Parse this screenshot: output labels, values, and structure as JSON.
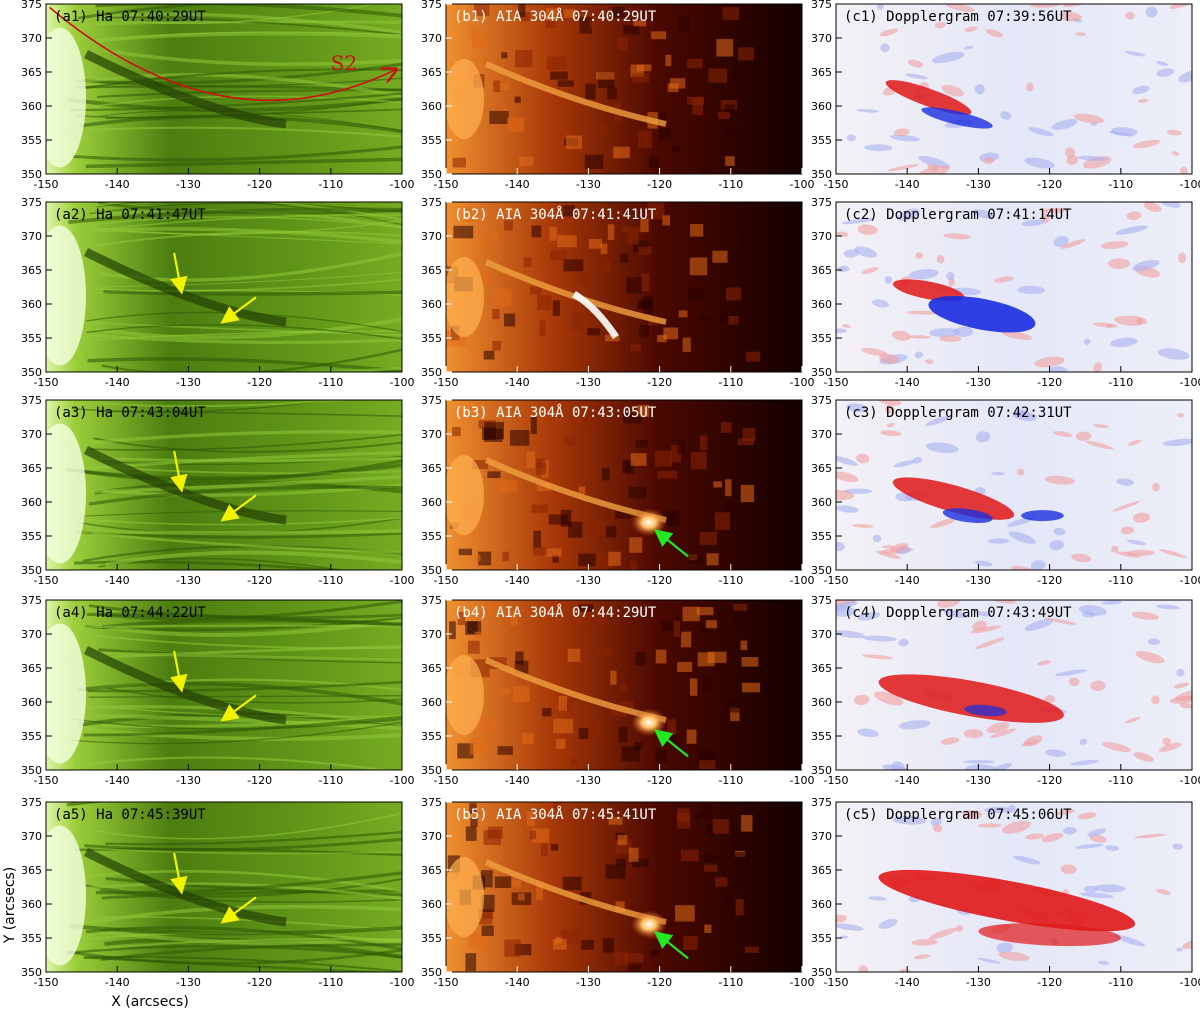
{
  "figure": {
    "columns": [
      {
        "id": "a",
        "type": "halpha",
        "text_color": "#000000"
      },
      {
        "id": "b",
        "type": "aia304",
        "text_color": "#ffffff"
      },
      {
        "id": "c",
        "type": "doppler",
        "text_color": "#000000"
      }
    ],
    "panels": [
      [
        "(a1) Ha 07:40:29UT",
        "(b1) AIA 304Å 07:40:29UT",
        "(c1) Dopplergram 07:39:56UT"
      ],
      [
        "(a2) Ha 07:41:47UT",
        "(b2) AIA 304Å 07:41:41UT",
        "(c2) Dopplergram 07:41:14UT"
      ],
      [
        "(a3) Ha 07:43:04UT",
        "(b3) AIA 304Å 07:43:05UT",
        "(c3) Dopplergram 07:42:31UT"
      ],
      [
        "(a4) Ha 07:44:22UT",
        "(b4) AIA 304Å 07:44:29UT",
        "(c4) Dopplergram 07:43:49UT"
      ],
      [
        "(a5) Ha 07:45:39UT",
        "(b5) AIA 304Å 07:45:41UT",
        "(c5) Dopplergram 07:45:06UT"
      ]
    ],
    "x_ticks": [
      "-150",
      "-140",
      "-130",
      "-120",
      "-110",
      "-100"
    ],
    "y_ticks": [
      "375",
      "370",
      "365",
      "360",
      "355",
      "350"
    ],
    "x_axis_title": "X (arcsecs)",
    "y_axis_title": "Y (arcsecs)",
    "slit_label": "S2",
    "colors": {
      "halpha_base": "#4a7c0c",
      "aia_base": "#5a1000",
      "doppler_base": "#e8ecf8",
      "slit": "#cc1010",
      "yellow_arrow": "#f2f200",
      "green_arrow": "#22e822",
      "red_flow": "#e01818",
      "blue_flow": "#1a2ee0"
    }
  },
  "chart_data": {
    "type": "image-grid",
    "xlim": [
      -150,
      -100
    ],
    "ylim": [
      350,
      375
    ],
    "rows": 5,
    "cols": 3
  }
}
